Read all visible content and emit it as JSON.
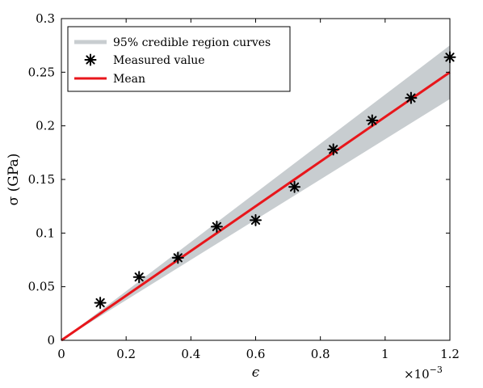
{
  "chart_data": {
    "type": "line",
    "xlabel": "ϵ",
    "ylabel": "σ (GPa)",
    "x_exponent_label": "×10",
    "x_exponent_power": "−3",
    "xlim": [
      0,
      1.2
    ],
    "ylim": [
      0,
      0.3
    ],
    "x_ticks": [
      0,
      0.2,
      0.4,
      0.6,
      0.8,
      1,
      1.2
    ],
    "x_tick_labels": [
      "0",
      "0.2",
      "0.4",
      "0.6",
      "0.8",
      "1",
      "1.2"
    ],
    "y_ticks": [
      0,
      0.05,
      0.1,
      0.15,
      0.2,
      0.25,
      0.3
    ],
    "y_tick_labels": [
      "0",
      "0.05",
      "0.1",
      "0.15",
      "0.2",
      "0.25",
      "0.3"
    ],
    "grid": false,
    "legend_position": "top-left",
    "legend": [
      "95% credible region curves",
      "Measured value",
      "Mean"
    ],
    "colors": {
      "band": "#c8cdd0",
      "mean": "#e8161b",
      "marker": "#000000"
    },
    "series": [
      {
        "name": "95% credible region curves",
        "kind": "band",
        "x": [
          0,
          1.2
        ],
        "lower": [
          0,
          0.225
        ],
        "upper": [
          0,
          0.275
        ]
      },
      {
        "name": "Measured value",
        "kind": "scatter",
        "x": [
          0.12,
          0.24,
          0.36,
          0.48,
          0.6,
          0.72,
          0.84,
          0.96,
          1.08,
          1.2
        ],
        "y": [
          0.035,
          0.059,
          0.077,
          0.106,
          0.112,
          0.143,
          0.178,
          0.205,
          0.226,
          0.264
        ]
      },
      {
        "name": "Mean",
        "kind": "line",
        "x": [
          0,
          1.2
        ],
        "y": [
          0,
          0.25
        ]
      }
    ]
  }
}
